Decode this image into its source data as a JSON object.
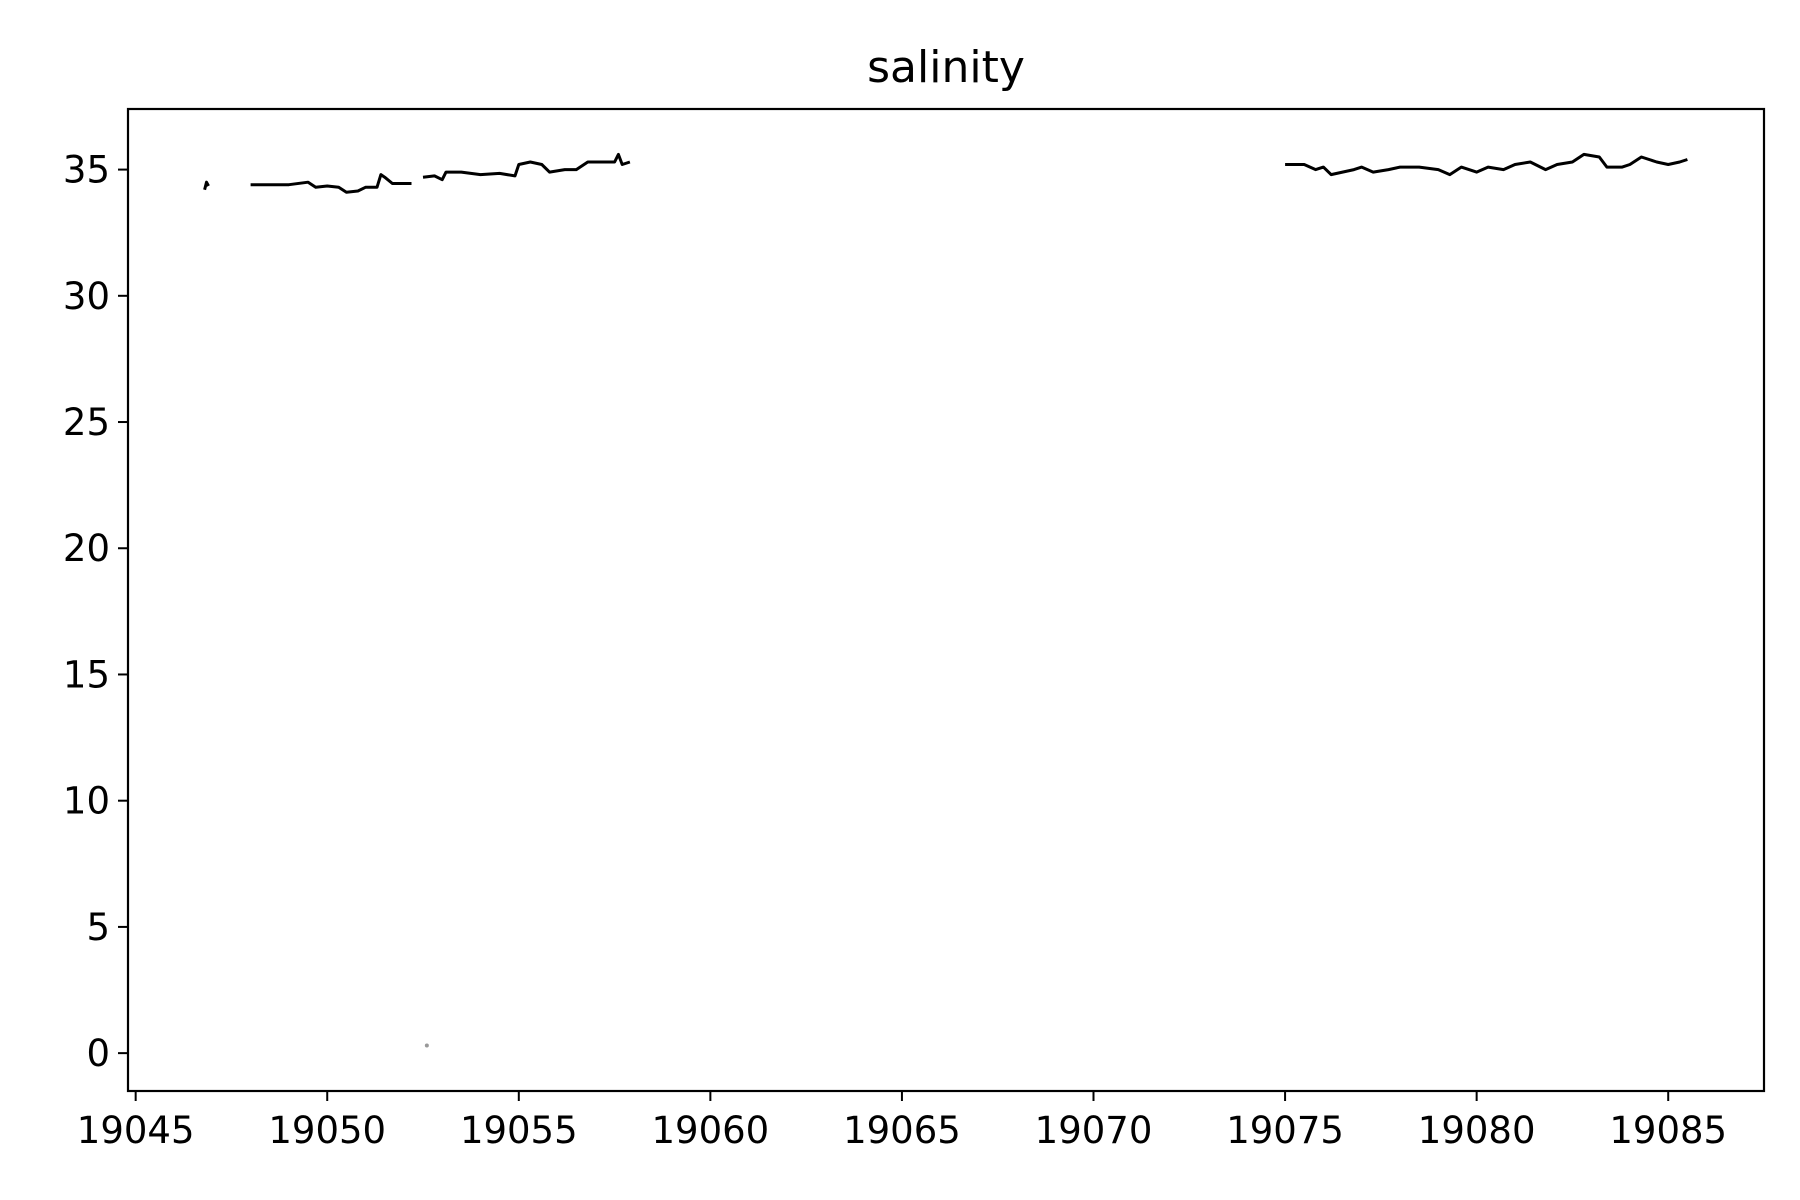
{
  "chart_data": {
    "type": "line",
    "title": "salinity",
    "xlabel": "",
    "ylabel": "",
    "xlim": [
      19044.8,
      19087.5
    ],
    "ylim": [
      -1.5,
      37.4
    ],
    "xticks": [
      19045,
      19050,
      19055,
      19060,
      19065,
      19070,
      19075,
      19080,
      19085
    ],
    "yticks": [
      0,
      5,
      10,
      15,
      20,
      25,
      30,
      35
    ],
    "grid": false,
    "line_color": "#000000",
    "outlier_color": "#999999",
    "series": [
      {
        "segments": [
          [
            [
              19046.8,
              34.2
            ],
            [
              19046.85,
              34.5
            ],
            [
              19046.9,
              34.35
            ]
          ],
          [
            [
              19048.0,
              34.4
            ],
            [
              19048.5,
              34.4
            ],
            [
              19049.0,
              34.4
            ],
            [
              19049.5,
              34.5
            ],
            [
              19049.7,
              34.3
            ],
            [
              19050.0,
              34.35
            ],
            [
              19050.3,
              34.3
            ],
            [
              19050.5,
              34.1
            ],
            [
              19050.8,
              34.15
            ],
            [
              19051.0,
              34.3
            ],
            [
              19051.3,
              34.3
            ],
            [
              19051.4,
              34.8
            ],
            [
              19051.5,
              34.7
            ],
            [
              19051.7,
              34.45
            ],
            [
              19052.2,
              34.45
            ]
          ],
          [
            [
              19052.5,
              34.7
            ],
            [
              19052.8,
              34.75
            ],
            [
              19053.0,
              34.6
            ],
            [
              19053.1,
              34.9
            ],
            [
              19053.5,
              34.9
            ],
            [
              19054.0,
              34.8
            ],
            [
              19054.5,
              34.85
            ],
            [
              19054.9,
              34.75
            ],
            [
              19055.0,
              35.2
            ],
            [
              19055.3,
              35.3
            ],
            [
              19055.6,
              35.2
            ],
            [
              19055.8,
              34.9
            ],
            [
              19056.2,
              35.0
            ],
            [
              19056.5,
              35.0
            ],
            [
              19056.8,
              35.3
            ],
            [
              19057.2,
              35.3
            ],
            [
              19057.5,
              35.3
            ],
            [
              19057.6,
              35.6
            ],
            [
              19057.7,
              35.2
            ],
            [
              19057.9,
              35.3
            ]
          ],
          [
            [
              19075.0,
              35.2
            ],
            [
              19075.5,
              35.2
            ],
            [
              19075.8,
              35.0
            ],
            [
              19076.0,
              35.1
            ],
            [
              19076.2,
              34.8
            ],
            [
              19076.5,
              34.9
            ],
            [
              19076.8,
              35.0
            ],
            [
              19077.0,
              35.1
            ],
            [
              19077.3,
              34.9
            ],
            [
              19077.7,
              35.0
            ],
            [
              19078.0,
              35.1
            ],
            [
              19078.5,
              35.1
            ],
            [
              19079.0,
              35.0
            ],
            [
              19079.3,
              34.8
            ],
            [
              19079.6,
              35.1
            ],
            [
              19080.0,
              34.9
            ],
            [
              19080.3,
              35.1
            ],
            [
              19080.7,
              35.0
            ],
            [
              19081.0,
              35.2
            ],
            [
              19081.4,
              35.3
            ],
            [
              19081.8,
              35.0
            ],
            [
              19082.1,
              35.2
            ],
            [
              19082.5,
              35.3
            ],
            [
              19082.8,
              35.6
            ],
            [
              19083.2,
              35.5
            ],
            [
              19083.4,
              35.1
            ],
            [
              19083.8,
              35.1
            ],
            [
              19084.0,
              35.2
            ],
            [
              19084.3,
              35.5
            ],
            [
              19084.7,
              35.3
            ],
            [
              19085.0,
              35.2
            ],
            [
              19085.3,
              35.3
            ],
            [
              19085.5,
              35.4
            ]
          ]
        ]
      }
    ],
    "outliers": [
      {
        "x": 19052.6,
        "y": 0.3
      }
    ]
  }
}
